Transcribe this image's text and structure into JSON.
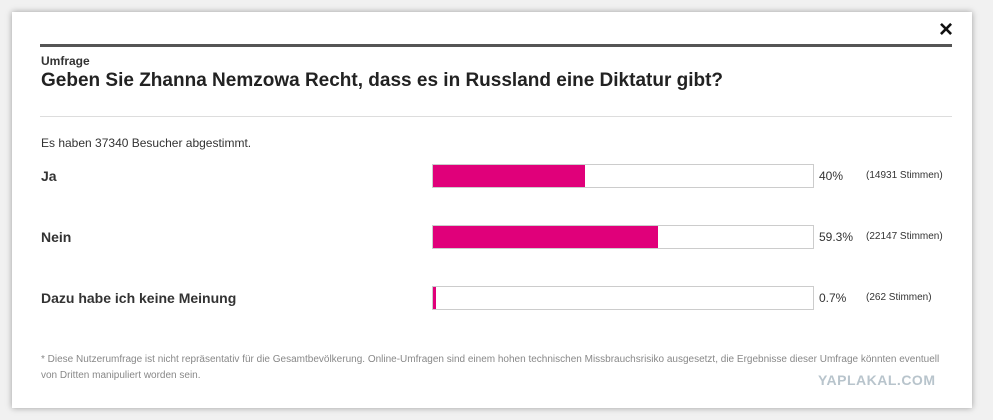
{
  "dialog": {
    "close": "×",
    "kicker": "Umfrage",
    "title": "Geben Sie Zhanna Nemzowa Recht, dass es in Russland eine Diktatur gibt?",
    "summary": "Es haben 37340 Besucher abgestimmt.",
    "poll": {
      "xlim": [
        0,
        100
      ],
      "color": "#e0007a",
      "options": [
        {
          "label": "Ja",
          "value": 40,
          "value_label": "40%",
          "votes": "(14931 Stimmen)"
        },
        {
          "label": "Nein",
          "value": 59.3,
          "value_label": "59.3%",
          "votes": "(22147 Stimmen)"
        },
        {
          "label": "Dazu habe ich keine Meinung",
          "value": 0.7,
          "value_label": "0.7%",
          "votes": "(262 Stimmen)"
        }
      ]
    },
    "footnote": "* Diese Nutzerumfrage ist nicht repräsentativ für die Gesamtbevölkerung. Online-Umfragen sind einem hohen technischen Missbrauchsrisiko ausgesetzt, die Ergebnisse dieser Umfrage könnten eventuell von Dritten manipuliert worden sein."
  },
  "watermark": "YAPLAKAL.COM"
}
